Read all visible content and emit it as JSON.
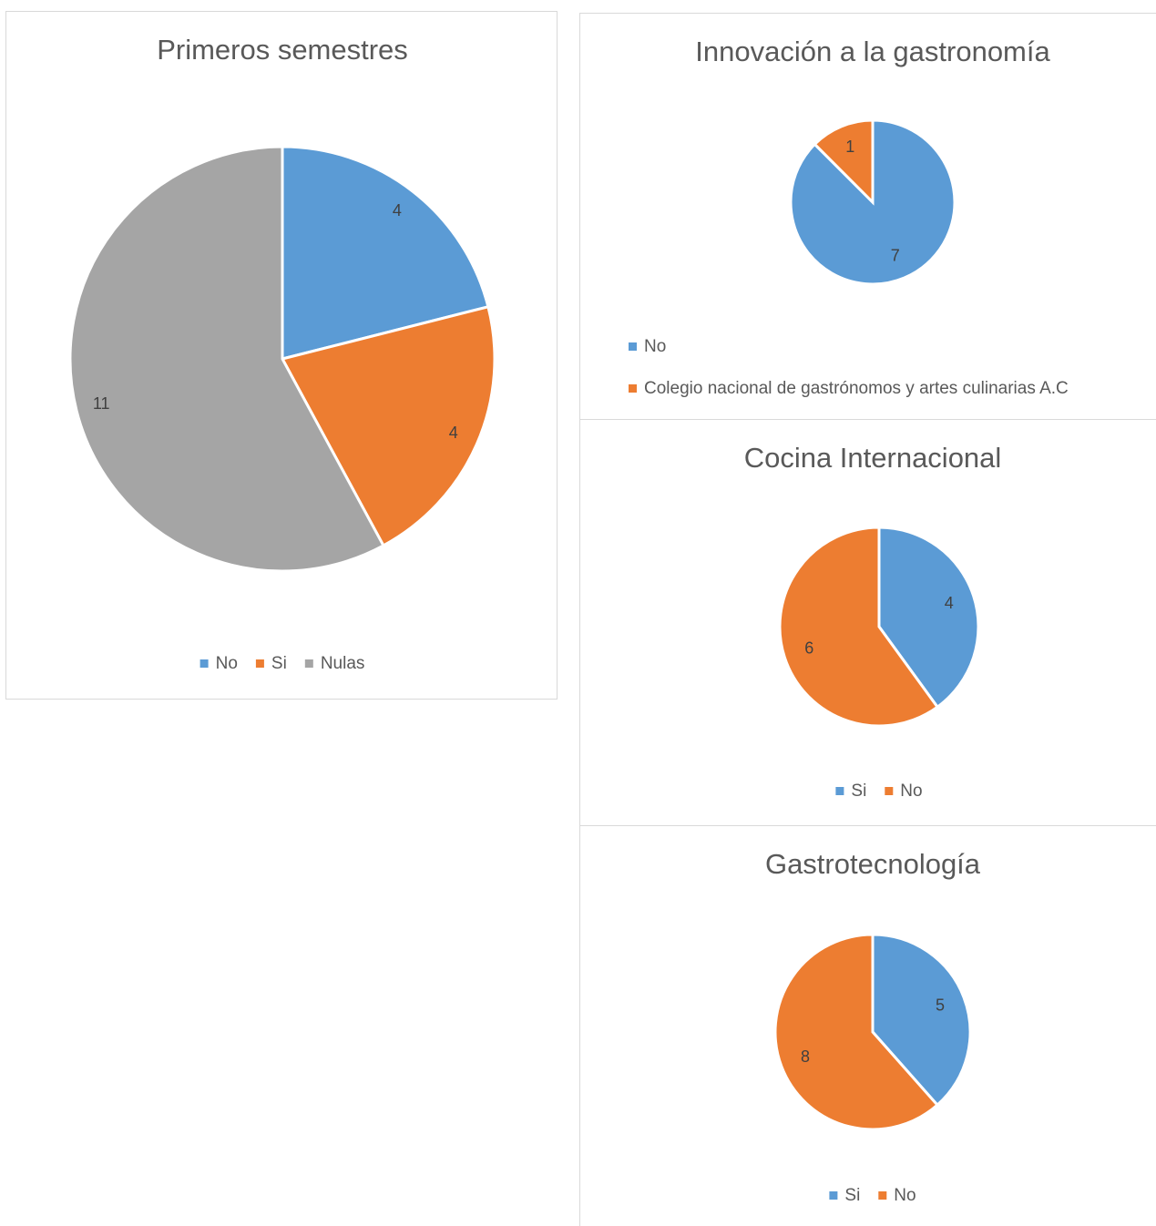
{
  "chart_data": [
    {
      "type": "pie",
      "title": "Primeros semestres",
      "categories": [
        "No",
        "Si",
        "Nulas"
      ],
      "values": [
        4,
        4,
        11
      ],
      "colors": [
        "#5b9bd5",
        "#ed7d31",
        "#a5a5a5"
      ],
      "legend": "bottom"
    },
    {
      "type": "pie",
      "title": "Innovación a la gastronomía",
      "categories": [
        "No",
        "Colegio nacional de gastrónomos y artes culinarias A.C"
      ],
      "values": [
        7,
        1
      ],
      "colors": [
        "#5b9bd5",
        "#ed7d31"
      ],
      "legend": "bottom"
    },
    {
      "type": "pie",
      "title": "Cocina Internacional",
      "categories": [
        "Si",
        "No"
      ],
      "values": [
        4,
        6
      ],
      "colors": [
        "#5b9bd5",
        "#ed7d31"
      ],
      "legend": "bottom"
    },
    {
      "type": "pie",
      "title": "Gastrotecnología",
      "categories": [
        "Si",
        "No"
      ],
      "values": [
        5,
        8
      ],
      "colors": [
        "#5b9bd5",
        "#ed7d31"
      ],
      "legend": "bottom"
    }
  ]
}
